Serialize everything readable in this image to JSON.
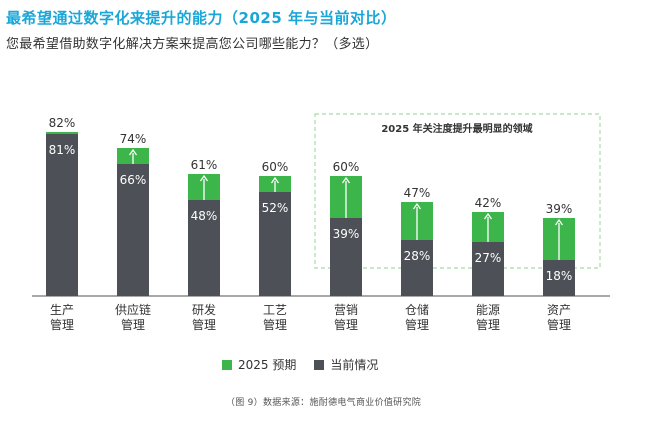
{
  "title": "最希望通过数字化来提升的能力（2025 年与当前对比）",
  "subtitle": "您最希望借助数字化解决方案来提高您公司哪些能力？（多选）",
  "highlight_label": "2025 年关注度提升最明显的领域",
  "source": "（图 9）数据来源：施耐德电气商业价值研究院",
  "colors": {
    "forecast": "#3cb54a",
    "current": "#4d5056",
    "title": "#1aa7d8",
    "highlight_border": "#a8dba8"
  },
  "legend": [
    {
      "label": "2025 预期",
      "color": "#3cb54a"
    },
    {
      "label": "当前情况",
      "color": "#4d5056"
    }
  ],
  "chart_data": {
    "type": "bar",
    "stacked_overlay": true,
    "categories": [
      [
        "生产",
        "管理"
      ],
      [
        "供应链",
        "管理"
      ],
      [
        "研发",
        "管理"
      ],
      [
        "工艺",
        "管理"
      ],
      [
        "营销",
        "管理"
      ],
      [
        "仓储",
        "管理"
      ],
      [
        "能源",
        "管理"
      ],
      [
        "资产",
        "管理"
      ]
    ],
    "series": [
      {
        "name": "2025 预期",
        "values": [
          82,
          74,
          61,
          60,
          60,
          47,
          42,
          39
        ],
        "labels": [
          "82%",
          "74%",
          "61%",
          "60%",
          "60%",
          "47%",
          "42%",
          "39%"
        ]
      },
      {
        "name": "当前情况",
        "values": [
          81,
          66,
          48,
          52,
          39,
          28,
          27,
          18
        ],
        "labels": [
          "81%",
          "66%",
          "48%",
          "52%",
          "39%",
          "28%",
          "27%",
          "18%"
        ]
      }
    ],
    "highlighted_categories": [
      4,
      5,
      6,
      7
    ],
    "ylim": [
      0,
      82
    ]
  }
}
